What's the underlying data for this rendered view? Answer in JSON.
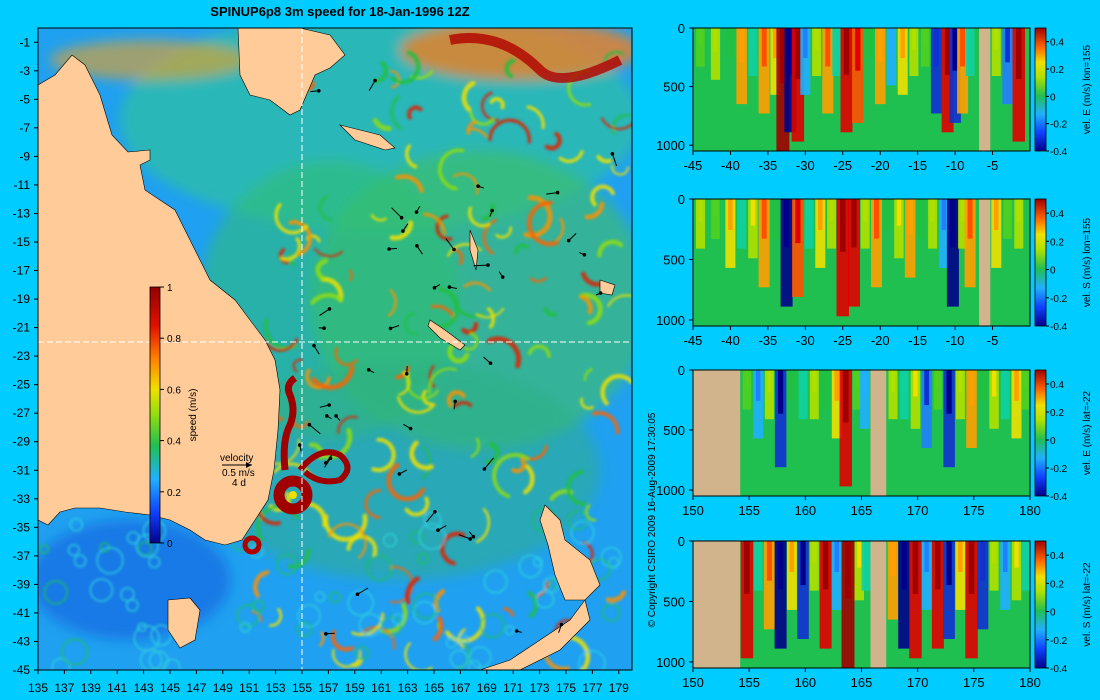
{
  "colors": {
    "background": "#00ccff",
    "land": "#ffcc99",
    "missing": "#d2b48c",
    "colormap": [
      "#00008a",
      "#1030d0",
      "#2080ff",
      "#20b0ff",
      "#10d0a0",
      "#20c040",
      "#50d020",
      "#b0e000",
      "#f0e000",
      "#ffa000",
      "#ff5000",
      "#e00000",
      "#a00000"
    ]
  },
  "main_map": {
    "title": "SPINUP6p8 3m speed for 18-Jan-1996 12Z",
    "lon_ticks": [
      "135",
      "137",
      "139",
      "141",
      "143",
      "145",
      "147",
      "149",
      "151",
      "153",
      "155",
      "157",
      "159",
      "161",
      "163",
      "165",
      "167",
      "169",
      "171",
      "173",
      "175",
      "177",
      "179"
    ],
    "lat_ticks": [
      "-1",
      "-3",
      "-5",
      "-7",
      "-9",
      "-11",
      "-13",
      "-15",
      "-17",
      "-19",
      "-21",
      "-23",
      "-25",
      "-27",
      "-29",
      "-31",
      "-33",
      "-35",
      "-37",
      "-39",
      "-41",
      "-43",
      "-45"
    ],
    "colorbar": {
      "label": "speed (m/s)",
      "ticks": [
        "1",
        "0.8",
        "0.6",
        "0.4",
        "0.2",
        "0"
      ]
    },
    "velocity_key": {
      "title": "velocity",
      "speed": "0.5 m/s",
      "time": "4 d"
    },
    "copyright": "© Copyright CSIRO 2009   16-Aug-2009 17:30:05"
  },
  "sections": [
    {
      "x_ticks": [
        "-45",
        "-40",
        "-35",
        "-30",
        "-25",
        "-20",
        "-15",
        "-10",
        "-5"
      ],
      "y_ticks": [
        "0",
        "500",
        "1000"
      ],
      "cbar_ticks": [
        "0.4",
        "0.2",
        "0",
        "-0.2",
        "-0.4"
      ],
      "cbar_label": "vel. E (m/s) lon=155"
    },
    {
      "x_ticks": [
        "-45",
        "-40",
        "-35",
        "-30",
        "-25",
        "-20",
        "-15",
        "-10",
        "-5"
      ],
      "y_ticks": [
        "0",
        "500",
        "1000"
      ],
      "cbar_ticks": [
        "0.4",
        "0.2",
        "0",
        "-0.2",
        "-0.4"
      ],
      "cbar_label": "vel. S (m/s) lon=155"
    },
    {
      "x_ticks": [
        "150",
        "155",
        "160",
        "165",
        "170",
        "175",
        "180"
      ],
      "y_ticks": [
        "0",
        "500",
        "1000"
      ],
      "cbar_ticks": [
        "0.4",
        "0.2",
        "0",
        "-0.2",
        "-0.4"
      ],
      "cbar_label": "vel. E (m/s) lat=-22"
    },
    {
      "x_ticks": [
        "150",
        "155",
        "160",
        "165",
        "170",
        "175",
        "180"
      ],
      "y_ticks": [
        "0",
        "500",
        "1000"
      ],
      "cbar_ticks": [
        "0.4",
        "0.2",
        "0",
        "-0.2",
        "-0.4"
      ],
      "cbar_label": "vel. S (m/s) lat=-22"
    }
  ],
  "chart_data": [
    {
      "type": "heatmap",
      "title": "SPINUP6p8 3m speed for 18-Jan-1996 12Z",
      "xlabel": "",
      "ylabel": "",
      "xlim": [
        135,
        180
      ],
      "ylim": [
        -45,
        0
      ],
      "colorbar_label": "speed (m/s)",
      "clim": [
        0,
        1
      ],
      "crosshair": {
        "lon": 155,
        "lat": -22
      },
      "features": [
        {
          "name": "eddy",
          "lon": 153.2,
          "lat": -33.0,
          "speed": 1.0
        },
        {
          "name": "eddy",
          "lon": 151.5,
          "lat": -36.3,
          "speed": 1.0
        },
        {
          "name": "jet",
          "lon": 154.0,
          "lat": -28.0,
          "speed": 0.9
        },
        {
          "name": "jet",
          "lon": 156.5,
          "lat": -31.0,
          "speed": 0.9
        },
        {
          "name": "jet",
          "lon": 170.5,
          "lat": -2.5,
          "speed": 1.0
        },
        {
          "name": "jet",
          "lon": 160.0,
          "lat": -20.0,
          "speed": 0.7
        },
        {
          "name": "jet",
          "lon": 171.0,
          "lat": -25.0,
          "speed": 0.8
        }
      ]
    },
    {
      "type": "heatmap",
      "xlabel": "",
      "ylabel": "",
      "xlim": [
        -45,
        0
      ],
      "ylim": [
        1050,
        0
      ],
      "clim": [
        -0.4,
        0.5
      ],
      "colorbar_label": "vel. E (m/s) lon=155",
      "land_x": [
        [
          -6.8,
          -5.3
        ]
      ],
      "columns": [
        {
          "x": -44,
          "v": 0.05
        },
        {
          "x": -42,
          "v": 0.12
        },
        {
          "x": -40,
          "v": 0.0
        },
        {
          "x": -38.5,
          "v": 0.25
        },
        {
          "x": -37,
          "v": -0.1
        },
        {
          "x": -35.5,
          "v": 0.3
        },
        {
          "x": -34,
          "v": 0.2
        },
        {
          "x": -33,
          "v": 0.5
        },
        {
          "x": -32,
          "v": -0.4
        },
        {
          "x": -31,
          "v": 0.45
        },
        {
          "x": -30,
          "v": -0.2
        },
        {
          "x": -28.5,
          "v": 0.1
        },
        {
          "x": -27,
          "v": 0.3
        },
        {
          "x": -25.8,
          "v": -0.1
        },
        {
          "x": -24.5,
          "v": 0.4
        },
        {
          "x": -23,
          "v": 0.35
        },
        {
          "x": -21.5,
          "v": 0.0
        },
        {
          "x": -20,
          "v": 0.25
        },
        {
          "x": -18.5,
          "v": -0.15
        },
        {
          "x": -17,
          "v": 0.2
        },
        {
          "x": -15.5,
          "v": 0.1
        },
        {
          "x": -14,
          "v": 0.05
        },
        {
          "x": -12.5,
          "v": -0.3
        },
        {
          "x": -11,
          "v": 0.4
        },
        {
          "x": -10,
          "v": -0.35
        },
        {
          "x": -9,
          "v": 0.3
        },
        {
          "x": -8,
          "v": -0.1
        },
        {
          "x": -4.5,
          "v": 0.1
        },
        {
          "x": -3,
          "v": -0.25
        },
        {
          "x": -1.5,
          "v": 0.45
        }
      ]
    },
    {
      "type": "heatmap",
      "xlabel": "",
      "ylabel": "",
      "xlim": [
        -45,
        0
      ],
      "ylim": [
        1050,
        0
      ],
      "clim": [
        -0.4,
        0.5
      ],
      "colorbar_label": "vel. S (m/s) lon=155",
      "land_x": [
        [
          -6.8,
          -5.3
        ]
      ],
      "columns": [
        {
          "x": -44,
          "v": 0.1
        },
        {
          "x": -42,
          "v": 0.05
        },
        {
          "x": -40,
          "v": 0.2
        },
        {
          "x": -38.5,
          "v": -0.1
        },
        {
          "x": -37,
          "v": 0.15
        },
        {
          "x": -35.5,
          "v": 0.3
        },
        {
          "x": -34,
          "v": -0.05
        },
        {
          "x": -32.5,
          "v": -0.4
        },
        {
          "x": -31,
          "v": 0.35
        },
        {
          "x": -29.5,
          "v": -0.1
        },
        {
          "x": -28,
          "v": 0.2
        },
        {
          "x": -26.5,
          "v": 0.1
        },
        {
          "x": -25,
          "v": 0.45
        },
        {
          "x": -23.5,
          "v": 0.4
        },
        {
          "x": -22,
          "v": 0.1
        },
        {
          "x": -20.5,
          "v": 0.3
        },
        {
          "x": -19,
          "v": 0.0
        },
        {
          "x": -17.5,
          "v": 0.15
        },
        {
          "x": -16,
          "v": 0.25
        },
        {
          "x": -14.5,
          "v": -0.05
        },
        {
          "x": -13,
          "v": 0.1
        },
        {
          "x": -11.5,
          "v": -0.2
        },
        {
          "x": -10.3,
          "v": -0.4
        },
        {
          "x": -9,
          "v": 0.1
        },
        {
          "x": -8,
          "v": 0.3
        },
        {
          "x": -4.5,
          "v": 0.2
        },
        {
          "x": -3,
          "v": 0.05
        },
        {
          "x": -1.5,
          "v": 0.1
        }
      ]
    },
    {
      "type": "heatmap",
      "xlabel": "",
      "ylabel": "",
      "xlim": [
        150,
        180
      ],
      "ylim": [
        1050,
        0
      ],
      "clim": [
        -0.4,
        0.5
      ],
      "colorbar_label": "vel. E (m/s) lat=-22",
      "land_x": [
        [
          150,
          154.2
        ],
        [
          165.8,
          167.2
        ]
      ],
      "columns": [
        {
          "x": 154.8,
          "v": 0.05
        },
        {
          "x": 155.8,
          "v": -0.2
        },
        {
          "x": 156.8,
          "v": 0.1
        },
        {
          "x": 157.8,
          "v": -0.35
        },
        {
          "x": 158.8,
          "v": 0.0
        },
        {
          "x": 159.8,
          "v": -0.1
        },
        {
          "x": 160.8,
          "v": 0.1
        },
        {
          "x": 161.8,
          "v": -0.05
        },
        {
          "x": 162.8,
          "v": 0.2
        },
        {
          "x": 163.6,
          "v": 0.45
        },
        {
          "x": 164.6,
          "v": 0.05
        },
        {
          "x": 165.3,
          "v": -0.15
        },
        {
          "x": 167.8,
          "v": 0.1
        },
        {
          "x": 168.8,
          "v": -0.1
        },
        {
          "x": 169.8,
          "v": 0.15
        },
        {
          "x": 170.8,
          "v": -0.25
        },
        {
          "x": 171.8,
          "v": 0.05
        },
        {
          "x": 172.8,
          "v": -0.35
        },
        {
          "x": 173.8,
          "v": 0.1
        },
        {
          "x": 174.8,
          "v": 0.25
        },
        {
          "x": 175.8,
          "v": 0.0
        },
        {
          "x": 176.8,
          "v": 0.15
        },
        {
          "x": 177.8,
          "v": -0.1
        },
        {
          "x": 178.8,
          "v": 0.2
        },
        {
          "x": 179.6,
          "v": 0.05
        }
      ]
    },
    {
      "type": "heatmap",
      "xlabel": "",
      "ylabel": "",
      "xlim": [
        150,
        180
      ],
      "ylim": [
        1050,
        0
      ],
      "clim": [
        -0.4,
        0.5
      ],
      "colorbar_label": "vel. S (m/s) lat=-22",
      "land_x": [
        [
          150,
          154.2
        ],
        [
          165.8,
          167.2
        ]
      ],
      "columns": [
        {
          "x": 154.8,
          "v": 0.45
        },
        {
          "x": 155.8,
          "v": -0.1
        },
        {
          "x": 156.8,
          "v": 0.3
        },
        {
          "x": 157.8,
          "v": -0.4
        },
        {
          "x": 158.8,
          "v": 0.2
        },
        {
          "x": 159.8,
          "v": -0.35
        },
        {
          "x": 160.8,
          "v": 0.1
        },
        {
          "x": 161.8,
          "v": 0.4
        },
        {
          "x": 162.8,
          "v": -0.2
        },
        {
          "x": 163.8,
          "v": 0.5
        },
        {
          "x": 164.8,
          "v": 0.15
        },
        {
          "x": 165.4,
          "v": -0.1
        },
        {
          "x": 167.8,
          "v": 0.25
        },
        {
          "x": 168.8,
          "v": -0.4
        },
        {
          "x": 169.8,
          "v": 0.45
        },
        {
          "x": 170.8,
          "v": -0.2
        },
        {
          "x": 171.8,
          "v": 0.4
        },
        {
          "x": 172.8,
          "v": -0.35
        },
        {
          "x": 173.8,
          "v": 0.2
        },
        {
          "x": 174.8,
          "v": 0.45
        },
        {
          "x": 175.8,
          "v": -0.3
        },
        {
          "x": 176.8,
          "v": 0.1
        },
        {
          "x": 177.8,
          "v": -0.2
        },
        {
          "x": 178.8,
          "v": 0.15
        },
        {
          "x": 179.6,
          "v": -0.1
        }
      ]
    }
  ]
}
